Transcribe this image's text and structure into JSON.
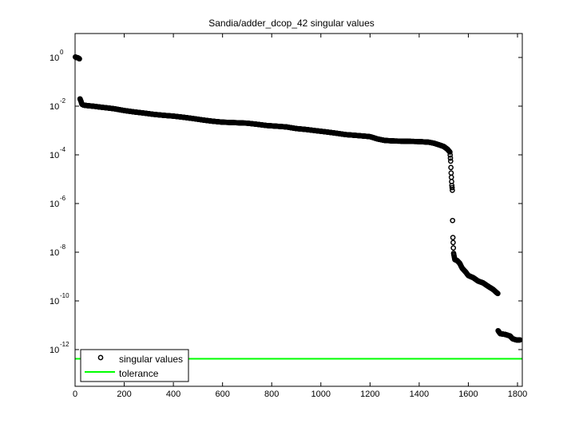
{
  "chart_data": {
    "type": "scatter",
    "title": "Sandia/adder_dcop_42 singular values",
    "xlabel": "",
    "ylabel": "",
    "yscale": "log",
    "xlim": [
      0,
      1813
    ],
    "ylim_exp": [
      -14.5,
      1
    ],
    "x_ticks": [
      0,
      200,
      400,
      600,
      800,
      1000,
      1200,
      1400,
      1600,
      1800
    ],
    "y_ticks_exp": [
      0,
      -2,
      -4,
      -6,
      -8,
      -10,
      -12
    ],
    "grid": false,
    "legend": {
      "position": "lower left",
      "entries": [
        {
          "label": "singular values",
          "marker": "circle",
          "color": "#000000"
        },
        {
          "label": "tolerance",
          "marker": "line",
          "color": "#00ff00"
        }
      ]
    },
    "series": [
      {
        "name": "singular values",
        "color": "#000000",
        "points": [
          [
            1,
            1.05
          ],
          [
            5,
            1.0
          ],
          [
            10,
            0.98
          ],
          [
            15,
            0.92
          ],
          [
            18,
            0.88
          ],
          [
            20,
            0.02
          ],
          [
            24,
            0.016
          ],
          [
            28,
            0.012
          ],
          [
            35,
            0.011
          ],
          [
            50,
            0.0105
          ],
          [
            80,
            0.0098
          ],
          [
            100,
            0.0092
          ],
          [
            130,
            0.0085
          ],
          [
            160,
            0.0078
          ],
          [
            200,
            0.0066
          ],
          [
            240,
            0.0058
          ],
          [
            280,
            0.0052
          ],
          [
            320,
            0.0046
          ],
          [
            360,
            0.0042
          ],
          [
            400,
            0.0039
          ],
          [
            440,
            0.0035
          ],
          [
            480,
            0.0031
          ],
          [
            520,
            0.0027
          ],
          [
            560,
            0.0024
          ],
          [
            600,
            0.0022
          ],
          [
            650,
            0.0021
          ],
          [
            700,
            0.002
          ],
          [
            740,
            0.0018
          ],
          [
            780,
            0.0016
          ],
          [
            820,
            0.0015
          ],
          [
            860,
            0.0014
          ],
          [
            900,
            0.0012
          ],
          [
            940,
            0.0011
          ],
          [
            980,
            0.00098
          ],
          [
            1020,
            0.00088
          ],
          [
            1060,
            0.00078
          ],
          [
            1100,
            0.00068
          ],
          [
            1150,
            0.00062
          ],
          [
            1200,
            0.00056
          ],
          [
            1230,
            0.00045
          ],
          [
            1260,
            0.00039
          ],
          [
            1300,
            0.00037
          ],
          [
            1350,
            0.00036
          ],
          [
            1400,
            0.00035
          ],
          [
            1440,
            0.00033
          ],
          [
            1460,
            0.0003
          ],
          [
            1480,
            0.00026
          ],
          [
            1500,
            0.00022
          ],
          [
            1515,
            0.00017
          ],
          [
            1525,
            0.00013
          ],
          [
            1528,
            5.5e-05
          ],
          [
            1529,
            3e-05
          ],
          [
            1530,
            1.8e-05
          ],
          [
            1531,
            1.2e-05
          ],
          [
            1532,
            8e-06
          ],
          [
            1533,
            5.5e-06
          ],
          [
            1534,
            4.5e-06
          ],
          [
            1535,
            3.5e-06
          ],
          [
            1536,
            2e-07
          ],
          [
            1537,
            4e-08
          ],
          [
            1538,
            2.5e-08
          ],
          [
            1540,
            9e-09
          ],
          [
            1545,
            5e-09
          ],
          [
            1555,
            4.5e-09
          ],
          [
            1565,
            3.5e-09
          ],
          [
            1575,
            2.2e-09
          ],
          [
            1590,
            1.5e-09
          ],
          [
            1600,
            1.1e-09
          ],
          [
            1620,
            9e-10
          ],
          [
            1640,
            6.5e-10
          ],
          [
            1660,
            5.5e-10
          ],
          [
            1680,
            4e-10
          ],
          [
            1700,
            3e-10
          ],
          [
            1715,
            2.2e-10
          ],
          [
            1720,
            2e-10
          ],
          [
            1721,
            6e-12
          ],
          [
            1730,
            4.5e-12
          ],
          [
            1750,
            4.2e-12
          ],
          [
            1770,
            3.6e-12
          ],
          [
            1780,
            2.8e-12
          ],
          [
            1795,
            2.5e-12
          ],
          [
            1810,
            2.5e-12
          ]
        ]
      },
      {
        "name": "tolerance",
        "color": "#00ff00",
        "value": 4.2e-13
      }
    ]
  }
}
